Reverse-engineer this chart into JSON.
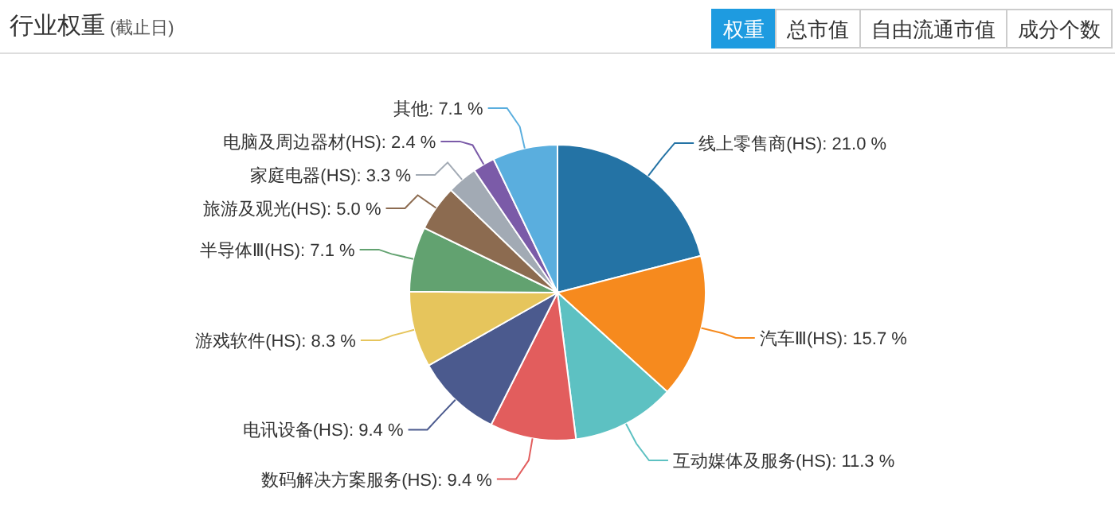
{
  "chart_data": {
    "type": "pie",
    "title": "行业权重",
    "subtitle": "(截止日)",
    "annotations": [
      "权重",
      "总市值",
      "自由流通市值",
      "成分个数"
    ],
    "categories": [
      "线上零售商(HS)",
      "汽车Ⅲ(HS)",
      "互动媒体及服务(HS)",
      "数码解决方案服务(HS)",
      "电讯设备(HS)",
      "游戏软件(HS)",
      "半导体Ⅲ(HS)",
      "旅游及观光(HS)",
      "家庭电器(HS)",
      "电脑及周边器材(HS)",
      "其他"
    ],
    "values": [
      21.0,
      15.7,
      11.3,
      9.4,
      9.4,
      8.3,
      7.1,
      5.0,
      3.3,
      2.4,
      7.1
    ],
    "value_labels": [
      "21.0 %",
      "15.7 %",
      "11.3 %",
      "9.4 %",
      "9.4 %",
      "8.3 %",
      "7.1 %",
      "5.0 %",
      "3.3 %",
      "2.4 %",
      "7.1 %"
    ],
    "colors": [
      "#2473a5",
      "#f68a1e",
      "#5dc1c2",
      "#e25d5d",
      "#4b5a8e",
      "#e6c55c",
      "#62a270",
      "#8c6b50",
      "#a2aab4",
      "#7b5ba8",
      "#5aaede"
    ]
  }
}
